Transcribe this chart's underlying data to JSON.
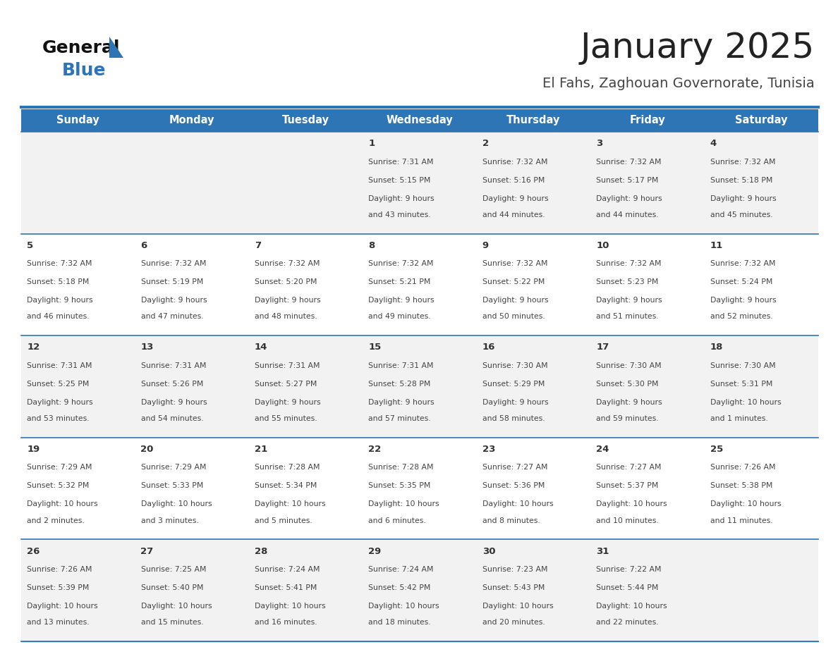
{
  "title": "January 2025",
  "subtitle": "El Fahs, Zaghouan Governorate, Tunisia",
  "days_of_week": [
    "Sunday",
    "Monday",
    "Tuesday",
    "Wednesday",
    "Thursday",
    "Friday",
    "Saturday"
  ],
  "header_bg": "#2E75B6",
  "header_text": "#FFFFFF",
  "cell_bg_odd": "#F2F2F2",
  "cell_bg_even": "#FFFFFF",
  "cell_border": "#2E75B6",
  "title_color": "#222222",
  "subtitle_color": "#444444",
  "day_number_color": "#333333",
  "cell_text_color": "#444444",
  "logo_general_color": "#111111",
  "logo_blue_color": "#2E75B6",
  "calendar_data": [
    {
      "day": 1,
      "col": 3,
      "row": 0,
      "sunrise": "7:31 AM",
      "sunset": "5:15 PM",
      "daylight_hours": 9,
      "daylight_minutes": 43
    },
    {
      "day": 2,
      "col": 4,
      "row": 0,
      "sunrise": "7:32 AM",
      "sunset": "5:16 PM",
      "daylight_hours": 9,
      "daylight_minutes": 44
    },
    {
      "day": 3,
      "col": 5,
      "row": 0,
      "sunrise": "7:32 AM",
      "sunset": "5:17 PM",
      "daylight_hours": 9,
      "daylight_minutes": 44
    },
    {
      "day": 4,
      "col": 6,
      "row": 0,
      "sunrise": "7:32 AM",
      "sunset": "5:18 PM",
      "daylight_hours": 9,
      "daylight_minutes": 45
    },
    {
      "day": 5,
      "col": 0,
      "row": 1,
      "sunrise": "7:32 AM",
      "sunset": "5:18 PM",
      "daylight_hours": 9,
      "daylight_minutes": 46
    },
    {
      "day": 6,
      "col": 1,
      "row": 1,
      "sunrise": "7:32 AM",
      "sunset": "5:19 PM",
      "daylight_hours": 9,
      "daylight_minutes": 47
    },
    {
      "day": 7,
      "col": 2,
      "row": 1,
      "sunrise": "7:32 AM",
      "sunset": "5:20 PM",
      "daylight_hours": 9,
      "daylight_minutes": 48
    },
    {
      "day": 8,
      "col": 3,
      "row": 1,
      "sunrise": "7:32 AM",
      "sunset": "5:21 PM",
      "daylight_hours": 9,
      "daylight_minutes": 49
    },
    {
      "day": 9,
      "col": 4,
      "row": 1,
      "sunrise": "7:32 AM",
      "sunset": "5:22 PM",
      "daylight_hours": 9,
      "daylight_minutes": 50
    },
    {
      "day": 10,
      "col": 5,
      "row": 1,
      "sunrise": "7:32 AM",
      "sunset": "5:23 PM",
      "daylight_hours": 9,
      "daylight_minutes": 51
    },
    {
      "day": 11,
      "col": 6,
      "row": 1,
      "sunrise": "7:32 AM",
      "sunset": "5:24 PM",
      "daylight_hours": 9,
      "daylight_minutes": 52
    },
    {
      "day": 12,
      "col": 0,
      "row": 2,
      "sunrise": "7:31 AM",
      "sunset": "5:25 PM",
      "daylight_hours": 9,
      "daylight_minutes": 53
    },
    {
      "day": 13,
      "col": 1,
      "row": 2,
      "sunrise": "7:31 AM",
      "sunset": "5:26 PM",
      "daylight_hours": 9,
      "daylight_minutes": 54
    },
    {
      "day": 14,
      "col": 2,
      "row": 2,
      "sunrise": "7:31 AM",
      "sunset": "5:27 PM",
      "daylight_hours": 9,
      "daylight_minutes": 55
    },
    {
      "day": 15,
      "col": 3,
      "row": 2,
      "sunrise": "7:31 AM",
      "sunset": "5:28 PM",
      "daylight_hours": 9,
      "daylight_minutes": 57
    },
    {
      "day": 16,
      "col": 4,
      "row": 2,
      "sunrise": "7:30 AM",
      "sunset": "5:29 PM",
      "daylight_hours": 9,
      "daylight_minutes": 58
    },
    {
      "day": 17,
      "col": 5,
      "row": 2,
      "sunrise": "7:30 AM",
      "sunset": "5:30 PM",
      "daylight_hours": 9,
      "daylight_minutes": 59
    },
    {
      "day": 18,
      "col": 6,
      "row": 2,
      "sunrise": "7:30 AM",
      "sunset": "5:31 PM",
      "daylight_hours": 10,
      "daylight_minutes": 1
    },
    {
      "day": 19,
      "col": 0,
      "row": 3,
      "sunrise": "7:29 AM",
      "sunset": "5:32 PM",
      "daylight_hours": 10,
      "daylight_minutes": 2
    },
    {
      "day": 20,
      "col": 1,
      "row": 3,
      "sunrise": "7:29 AM",
      "sunset": "5:33 PM",
      "daylight_hours": 10,
      "daylight_minutes": 3
    },
    {
      "day": 21,
      "col": 2,
      "row": 3,
      "sunrise": "7:28 AM",
      "sunset": "5:34 PM",
      "daylight_hours": 10,
      "daylight_minutes": 5
    },
    {
      "day": 22,
      "col": 3,
      "row": 3,
      "sunrise": "7:28 AM",
      "sunset": "5:35 PM",
      "daylight_hours": 10,
      "daylight_minutes": 6
    },
    {
      "day": 23,
      "col": 4,
      "row": 3,
      "sunrise": "7:27 AM",
      "sunset": "5:36 PM",
      "daylight_hours": 10,
      "daylight_minutes": 8
    },
    {
      "day": 24,
      "col": 5,
      "row": 3,
      "sunrise": "7:27 AM",
      "sunset": "5:37 PM",
      "daylight_hours": 10,
      "daylight_minutes": 10
    },
    {
      "day": 25,
      "col": 6,
      "row": 3,
      "sunrise": "7:26 AM",
      "sunset": "5:38 PM",
      "daylight_hours": 10,
      "daylight_minutes": 11
    },
    {
      "day": 26,
      "col": 0,
      "row": 4,
      "sunrise": "7:26 AM",
      "sunset": "5:39 PM",
      "daylight_hours": 10,
      "daylight_minutes": 13
    },
    {
      "day": 27,
      "col": 1,
      "row": 4,
      "sunrise": "7:25 AM",
      "sunset": "5:40 PM",
      "daylight_hours": 10,
      "daylight_minutes": 15
    },
    {
      "day": 28,
      "col": 2,
      "row": 4,
      "sunrise": "7:24 AM",
      "sunset": "5:41 PM",
      "daylight_hours": 10,
      "daylight_minutes": 16
    },
    {
      "day": 29,
      "col": 3,
      "row": 4,
      "sunrise": "7:24 AM",
      "sunset": "5:42 PM",
      "daylight_hours": 10,
      "daylight_minutes": 18
    },
    {
      "day": 30,
      "col": 4,
      "row": 4,
      "sunrise": "7:23 AM",
      "sunset": "5:43 PM",
      "daylight_hours": 10,
      "daylight_minutes": 20
    },
    {
      "day": 31,
      "col": 5,
      "row": 4,
      "sunrise": "7:22 AM",
      "sunset": "5:44 PM",
      "daylight_hours": 10,
      "daylight_minutes": 22
    }
  ]
}
